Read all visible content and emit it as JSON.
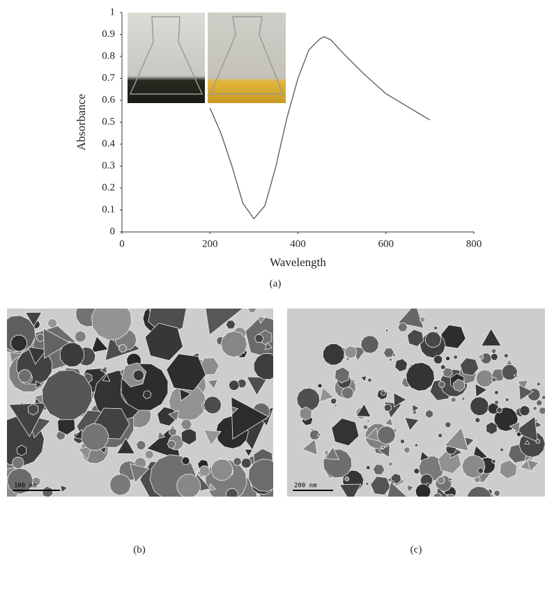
{
  "chart_data": {
    "type": "line",
    "xlabel": "Wavelength",
    "ylabel": "Absorbance",
    "x": [
      200,
      225,
      250,
      275,
      300,
      325,
      350,
      375,
      400,
      425,
      450,
      460,
      475,
      500,
      550,
      600,
      650,
      700
    ],
    "series": [
      {
        "color": "#555555",
        "values": [
          0.565,
          0.45,
          0.3,
          0.13,
          0.06,
          0.12,
          0.3,
          0.52,
          0.7,
          0.83,
          0.88,
          0.89,
          0.875,
          0.82,
          0.72,
          0.63,
          0.57,
          0.51
        ]
      }
    ],
    "xlim": [
      0,
      800
    ],
    "xticks": [
      0,
      200,
      400,
      600,
      800
    ],
    "ylim": [
      0,
      1
    ],
    "yticks": [
      0,
      0.1,
      0.2,
      0.3,
      0.4,
      0.5,
      0.6,
      0.7,
      0.8,
      0.9,
      1
    ],
    "grid": false
  },
  "panel_labels": [
    "(a)",
    "(b)",
    "(c)"
  ],
  "scale_bars": [
    "100 nm",
    "200 nm"
  ]
}
